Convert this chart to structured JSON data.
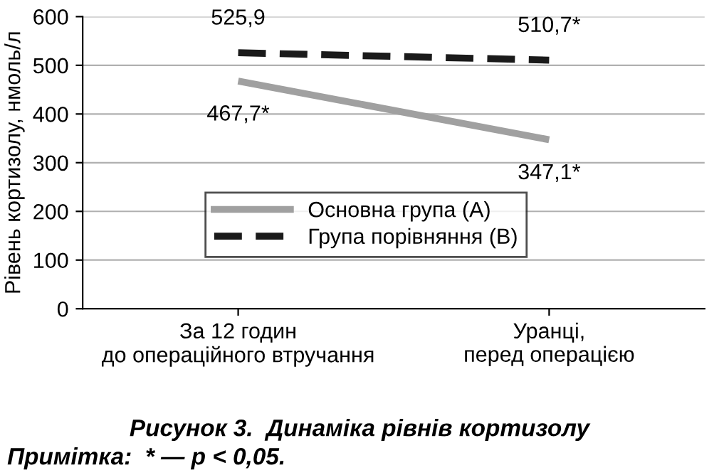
{
  "chart_data": {
    "type": "line",
    "title": "Рисунок 3.  Динаміка рівнів кортизолу",
    "ylabel": "Рівень кортизолу, нмоль/л",
    "categories": [
      "За 12 годин\nдо операційного втручання",
      "Уранці,\nперед операцією"
    ],
    "series": [
      {
        "name": "Основна група (А)",
        "color": "#a0a0a0",
        "values": [
          467.7,
          347.1
        ],
        "value_labels": [
          "467,7*",
          "347,1*"
        ],
        "line_style": "solid"
      },
      {
        "name": "Група порівняння (В)",
        "color": "#1a1a1a",
        "values": [
          525.9,
          510.7
        ],
        "value_labels": [
          "525,9",
          "510,7*"
        ],
        "line_style": "dashed"
      }
    ],
    "ylim": [
      0,
      600
    ],
    "yticks": [
      0,
      100,
      200,
      300,
      400,
      500,
      600
    ],
    "grid": "y",
    "legend": "bottom left",
    "marker": "none",
    "annotations": [
      "Примітка:  * — p < 0,05."
    ]
  }
}
